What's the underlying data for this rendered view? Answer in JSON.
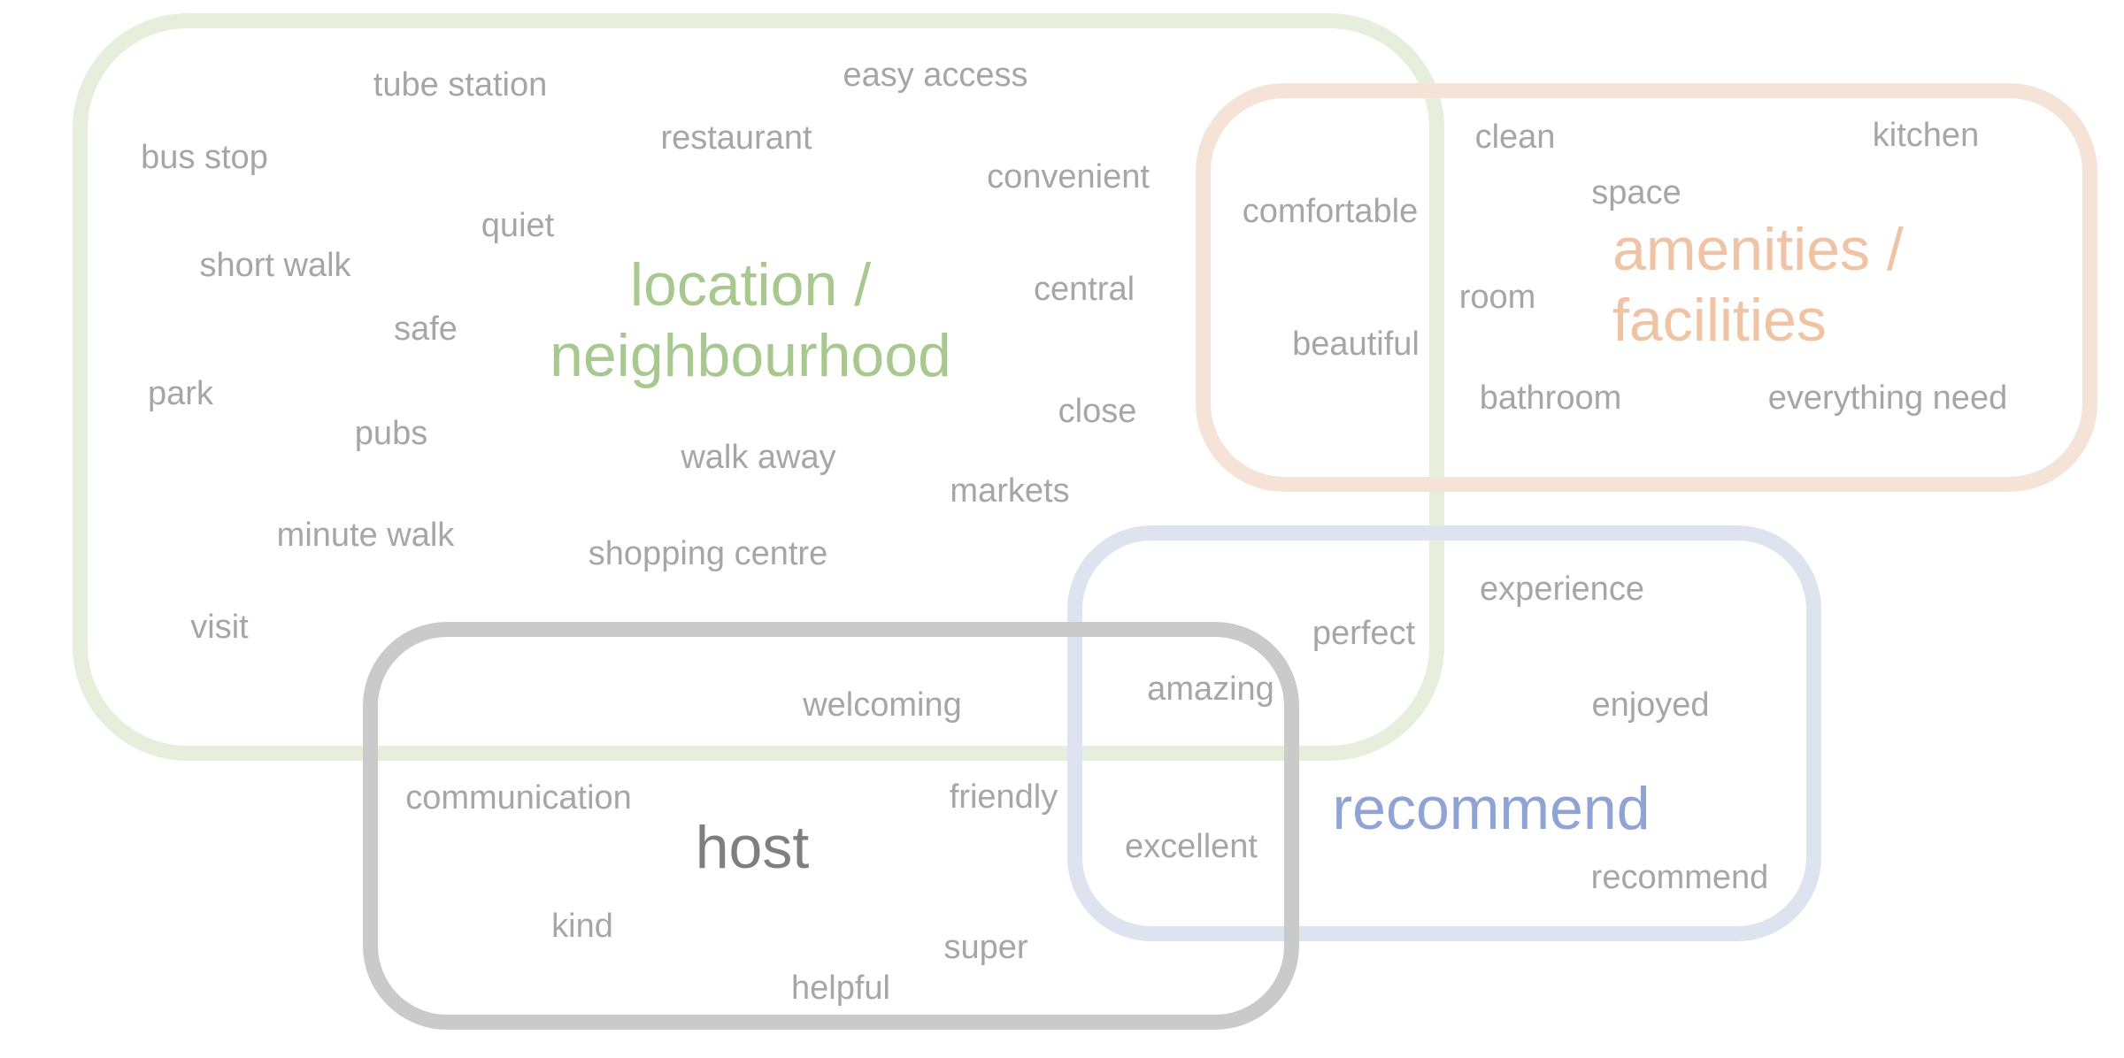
{
  "groups": {
    "location": {
      "title_line1": "location /",
      "title_line2": "neighbourhood",
      "color": "#a8c890",
      "border_color": "#e6eedc"
    },
    "amenities": {
      "title_line1": "amenities /",
      "title_line2": "facilities",
      "color": "#efc3a4",
      "border_color": "#f5e3d7"
    },
    "recommend": {
      "title": "recommend",
      "color": "#8fa4d4",
      "border_color": "#dde3ef"
    },
    "host": {
      "title": "host",
      "color": "#7f7f7f",
      "border_color": "#cbcaca"
    }
  },
  "words": [
    "tube station",
    "easy access",
    "bus stop",
    "restaurant",
    "convenient",
    "quiet",
    "short walk",
    "central",
    "safe",
    "park",
    "close",
    "pubs",
    "walk away",
    "markets",
    "minute walk",
    "shopping centre",
    "visit",
    "clean",
    "kitchen",
    "space",
    "comfortable",
    "room",
    "beautiful",
    "bathroom",
    "everything need",
    "experience",
    "perfect",
    "amazing",
    "welcoming",
    "enjoyed",
    "communication",
    "friendly",
    "excellent",
    "recommend",
    "kind",
    "super",
    "helpful"
  ]
}
